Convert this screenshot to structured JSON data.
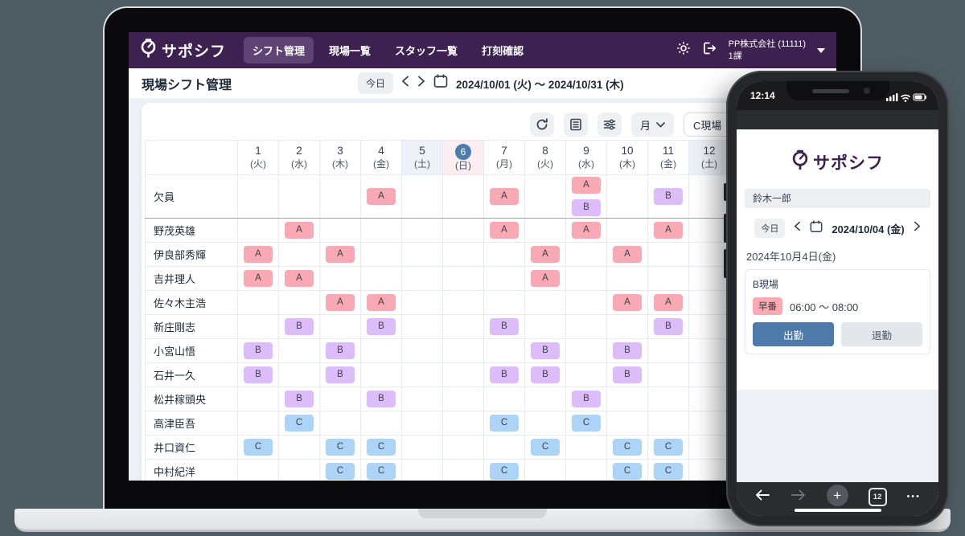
{
  "colors": {
    "background": "#4e5c64",
    "navbar_bg": "#3d2151",
    "nav_active_bg": "#5f4374",
    "page_bg": "#edf1f6",
    "badge_a": "#f8a9b3",
    "badge_b": "#dcbcf9",
    "badge_c": "#abd4f7",
    "sat_header_bg": "#eef2f8",
    "sun_header_bg": "#fceef1",
    "today_circle": "#4b7dad",
    "primary_button": "#4d7aa9"
  },
  "desktop": {
    "navbar": {
      "logo_text": "サポシフ",
      "items": [
        {
          "label": "シフト管理",
          "active": true
        },
        {
          "label": "現場一覧",
          "active": false
        },
        {
          "label": "スタッフ一覧",
          "active": false
        },
        {
          "label": "打刻確認",
          "active": false
        }
      ],
      "company_line1": "PP株式会社 (11111)",
      "company_line2": "1課"
    },
    "titlebar": {
      "title": "現場シフト管理",
      "today_label": "今日",
      "prev_label": "<",
      "next_label": ">",
      "date_range": "2024/10/01 (火) 〜 2024/10/31 (木)"
    },
    "toolbar": {
      "period_label": "月",
      "site_filter": "C現場",
      "site_filter_clear": "×"
    },
    "schedule": {
      "columns": [
        {
          "day": "1",
          "dow": "(火)",
          "kind": "weekday",
          "today": false
        },
        {
          "day": "2",
          "dow": "(水)",
          "kind": "weekday",
          "today": false
        },
        {
          "day": "3",
          "dow": "(木)",
          "kind": "weekday",
          "today": false
        },
        {
          "day": "4",
          "dow": "(金)",
          "kind": "weekday",
          "today": false
        },
        {
          "day": "5",
          "dow": "(土)",
          "kind": "sat",
          "today": false
        },
        {
          "day": "6",
          "dow": "(日)",
          "kind": "sun",
          "today": true
        },
        {
          "day": "7",
          "dow": "(月)",
          "kind": "weekday",
          "today": false
        },
        {
          "day": "8",
          "dow": "(火)",
          "kind": "weekday",
          "today": false
        },
        {
          "day": "9",
          "dow": "(水)",
          "kind": "weekday",
          "today": false
        },
        {
          "day": "10",
          "dow": "(木)",
          "kind": "weekday",
          "today": false
        },
        {
          "day": "11",
          "dow": "(金)",
          "kind": "weekday",
          "today": false
        },
        {
          "day": "12",
          "dow": "(土)",
          "kind": "sat",
          "today": false
        }
      ],
      "rows": [
        {
          "name": "欠員",
          "tall": true,
          "sep": true,
          "cells": {
            "4": [
              "A"
            ],
            "7": [
              "A"
            ],
            "9": [
              "A",
              "B"
            ],
            "11": [
              "B"
            ]
          }
        },
        {
          "name": "野茂英雄",
          "cells": {
            "2": [
              "A"
            ],
            "7": [
              "A"
            ],
            "9": [
              "A"
            ],
            "11": [
              "A"
            ]
          }
        },
        {
          "name": "伊良部秀輝",
          "cells": {
            "1": [
              "A"
            ],
            "3": [
              "A"
            ],
            "8": [
              "A"
            ],
            "10": [
              "A"
            ]
          }
        },
        {
          "name": "吉井理人",
          "cells": {
            "1": [
              "A"
            ],
            "2": [
              "A"
            ],
            "8": [
              "A"
            ]
          }
        },
        {
          "name": "佐々木主浩",
          "cells": {
            "3": [
              "A"
            ],
            "4": [
              "A"
            ],
            "10": [
              "A"
            ],
            "11": [
              "A"
            ]
          }
        },
        {
          "name": "新庄剛志",
          "cells": {
            "2": [
              "B"
            ],
            "4": [
              "B"
            ],
            "7": [
              "B"
            ],
            "11": [
              "B"
            ]
          }
        },
        {
          "name": "小宮山悟",
          "cells": {
            "1": [
              "B"
            ],
            "3": [
              "B"
            ],
            "8": [
              "B"
            ],
            "10": [
              "B"
            ]
          }
        },
        {
          "name": "石井一久",
          "cells": {
            "1": [
              "B"
            ],
            "3": [
              "B"
            ],
            "7": [
              "B"
            ],
            "8": [
              "B"
            ],
            "10": [
              "B"
            ]
          }
        },
        {
          "name": "松井稼頭央",
          "cells": {
            "2": [
              "B"
            ],
            "4": [
              "B"
            ],
            "9": [
              "B"
            ]
          }
        },
        {
          "name": "高津臣吾",
          "cells": {
            "2": [
              "C"
            ],
            "7": [
              "C"
            ],
            "9": [
              "C"
            ]
          }
        },
        {
          "name": "井口資仁",
          "cells": {
            "1": [
              "C"
            ],
            "3": [
              "C"
            ],
            "4": [
              "C"
            ],
            "8": [
              "C"
            ],
            "10": [
              "C"
            ],
            "11": [
              "C"
            ]
          }
        },
        {
          "name": "中村紀洋",
          "cells": {
            "3": [
              "C"
            ],
            "4": [
              "C"
            ],
            "7": [
              "C"
            ],
            "10": [
              "C"
            ],
            "11": [
              "C"
            ]
          }
        }
      ]
    }
  },
  "phone": {
    "status_time": "12:14",
    "logo_text": "サポシフ",
    "staff_name": "鈴木一郎",
    "today_label": "今日",
    "date_label": "2024/10/04 (金)",
    "date_heading": "2024年10月4日(金)",
    "shift_card": {
      "site": "B現場",
      "shift_name": "早番",
      "time_range": "06:00 〜 08:00",
      "clock_in_label": "出勤",
      "clock_out_label": "退勤"
    },
    "tab_count": "12"
  }
}
